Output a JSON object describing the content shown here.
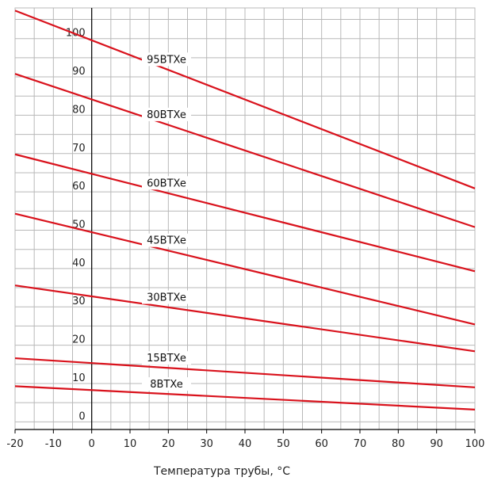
{
  "chart_data": {
    "type": "line",
    "title": "",
    "xlabel": "Температура трубы, °C",
    "ylabel": "",
    "xlim": [
      -20,
      100
    ],
    "ylim": [
      -2,
      108
    ],
    "x_ticks": [
      -20,
      -10,
      0,
      10,
      20,
      30,
      40,
      50,
      60,
      70,
      80,
      90,
      100
    ],
    "x_tick_labels": [
      "-20",
      "-10",
      "0",
      "10",
      "20",
      "30",
      "40",
      "50",
      "60",
      "70",
      "80",
      "90",
      "100"
    ],
    "y_tick_labels": [
      "0",
      "10",
      "20",
      "30",
      "40",
      "50",
      "60",
      "70",
      "80",
      "90",
      "100"
    ],
    "y_tick_values": [
      0,
      10,
      20,
      30,
      40,
      50,
      60,
      70,
      80,
      90,
      100
    ],
    "grid": true,
    "line_color": "#d9121c",
    "series": [
      {
        "name": "95BTXe",
        "x": [
          -20,
          100
        ],
        "values": [
          107.3,
          60.9
        ]
      },
      {
        "name": "80BTXe",
        "x": [
          -20,
          100
        ],
        "values": [
          90.8,
          50.8
        ]
      },
      {
        "name": "60BTXe",
        "x": [
          -20,
          100
        ],
        "values": [
          69.8,
          39.3
        ]
      },
      {
        "name": "45BTXe",
        "x": [
          -20,
          100
        ],
        "values": [
          54.3,
          25.4
        ]
      },
      {
        "name": "30BTXe",
        "x": [
          -20,
          100
        ],
        "values": [
          35.6,
          18.4
        ]
      },
      {
        "name": "15BTXe",
        "x": [
          -20,
          100
        ],
        "values": [
          16.6,
          9.0
        ]
      },
      {
        "name": "8BTXe",
        "x": [
          -20,
          100
        ],
        "values": [
          9.3,
          3.2
        ]
      }
    ]
  }
}
